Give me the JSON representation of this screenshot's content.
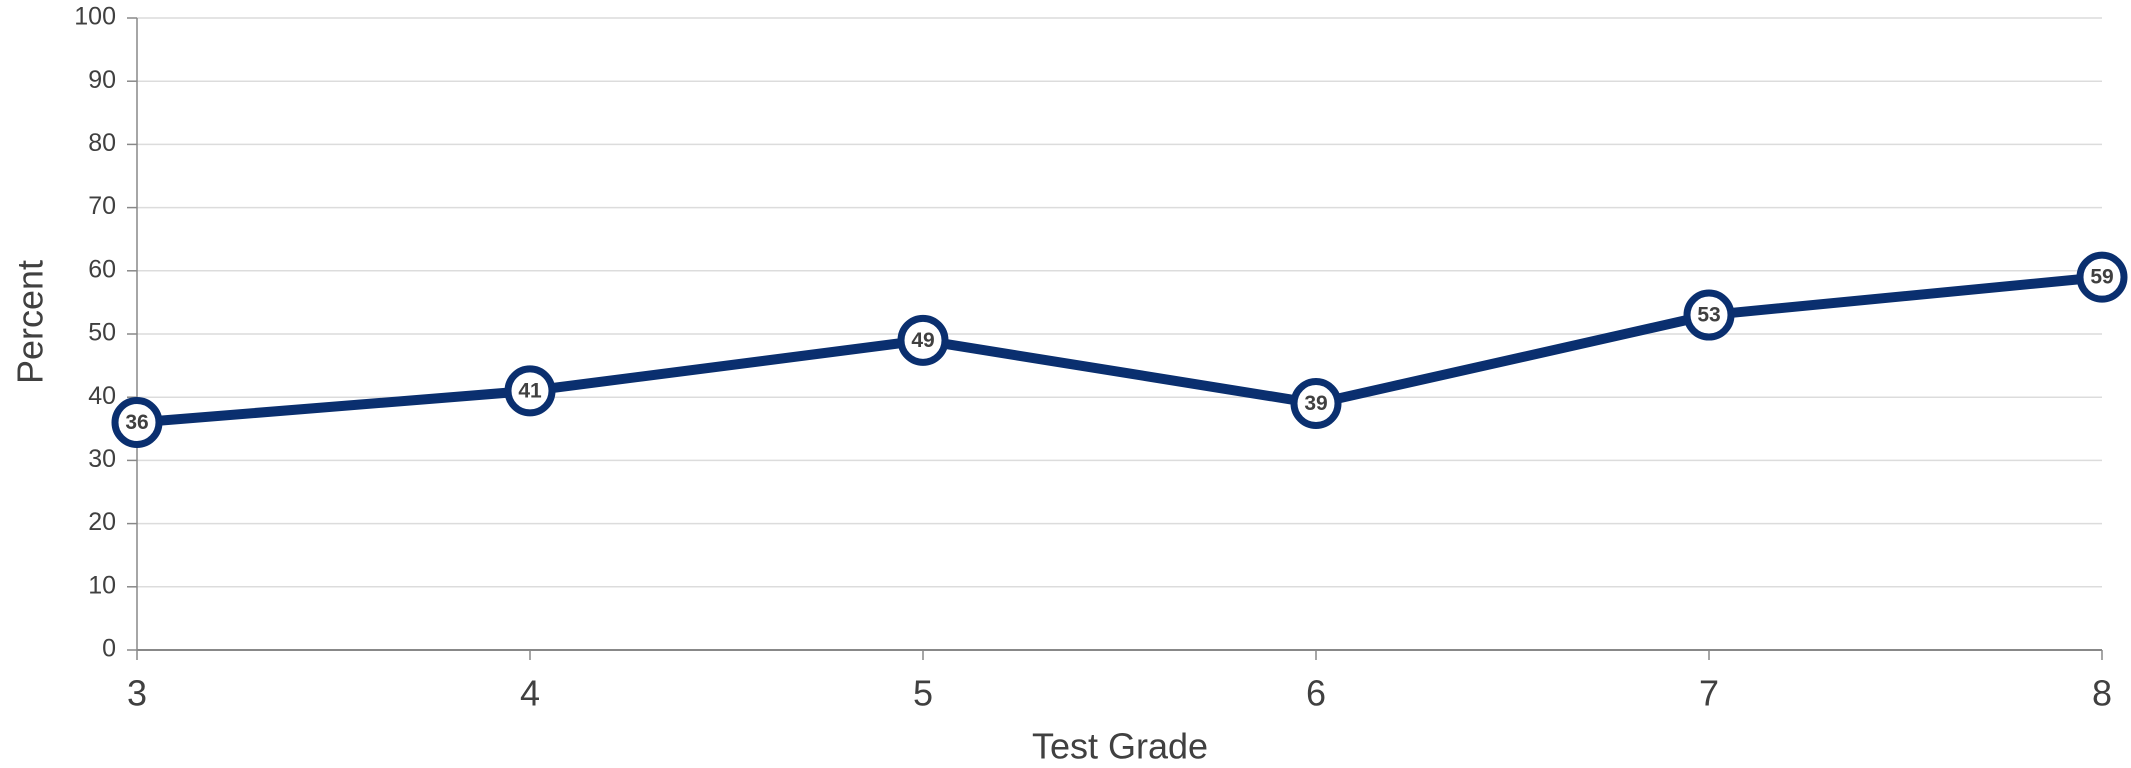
{
  "chart_data": {
    "type": "line",
    "x": [
      3,
      4,
      5,
      6,
      7,
      8
    ],
    "series": [
      {
        "name": "Percent",
        "color": "#0a2f6f",
        "values": [
          36,
          41,
          49,
          39,
          53,
          59
        ]
      }
    ],
    "xlim": [
      3,
      8
    ],
    "xticks": [
      3,
      4,
      5,
      6,
      7,
      8
    ],
    "ylim": [
      0,
      100
    ],
    "yticks": [
      0,
      10,
      20,
      30,
      40,
      50,
      60,
      70,
      80,
      90,
      100
    ],
    "xlabel": "Test Grade",
    "ylabel": "Percent",
    "grid": true
  }
}
